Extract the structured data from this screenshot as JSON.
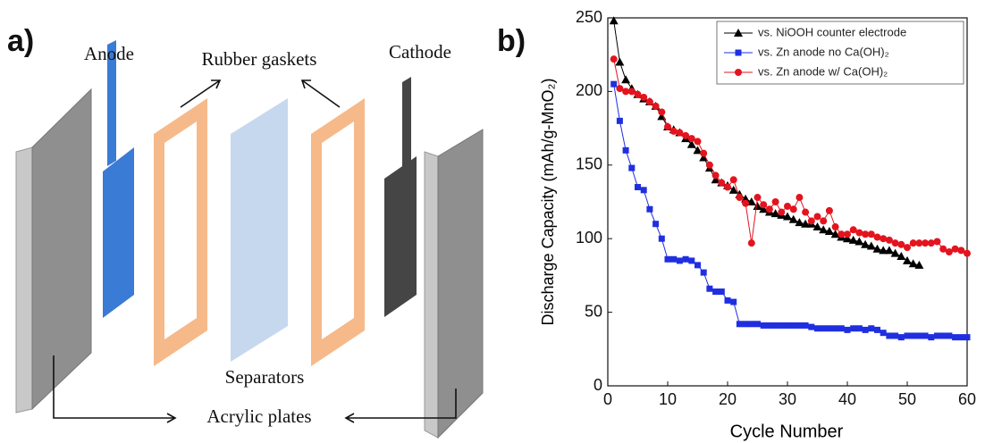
{
  "panel_a": {
    "label": "a)",
    "anode": "Anode",
    "gaskets": "Rubber gaskets",
    "cathode": "Cathode",
    "separators": "Separators",
    "plates": "Acrylic plates"
  },
  "chart_data": {
    "type": "line",
    "panel_label": "b)",
    "x_label": "Cycle Number",
    "y_label": "Discharge Capacity (mAh/g-MnO₂)",
    "xlim": [
      0,
      60
    ],
    "xticks": [
      0,
      10,
      20,
      30,
      40,
      50,
      60
    ],
    "ylim": [
      0,
      250
    ],
    "yticks": [
      0,
      50,
      100,
      150,
      200,
      250
    ],
    "legend": "upper right",
    "x": [
      1,
      2,
      3,
      4,
      5,
      6,
      7,
      8,
      9,
      10,
      11,
      12,
      13,
      14,
      15,
      16,
      17,
      18,
      19,
      20,
      21,
      22,
      23,
      24,
      25,
      26,
      27,
      28,
      29,
      30,
      31,
      32,
      33,
      34,
      35,
      36,
      37,
      38,
      39,
      40,
      41,
      42,
      43,
      44,
      45,
      46,
      47,
      48,
      49,
      50,
      51,
      52,
      53,
      54,
      55,
      56,
      57,
      58,
      59,
      60
    ],
    "series": [
      {
        "name": "vs. NiOOH counter electrode",
        "color": "#000000",
        "marker": "triangle",
        "values": [
          248,
          220,
          208,
          202,
          198,
          195,
          193,
          190,
          183,
          176,
          174,
          172,
          168,
          164,
          160,
          155,
          148,
          140,
          138,
          136,
          133,
          130,
          127,
          125,
          122,
          120,
          118,
          117,
          116,
          115,
          113,
          111,
          110,
          110,
          108,
          106,
          105,
          103,
          101,
          100,
          99,
          98,
          96,
          95,
          93,
          92,
          92,
          90,
          88,
          85,
          83,
          82,
          null,
          null,
          null,
          null,
          null,
          null,
          null,
          null
        ]
      },
      {
        "name": "vs. Zn anode no Ca(OH)₂",
        "color": "#1f2fe0",
        "marker": "square",
        "values": [
          205,
          180,
          160,
          148,
          135,
          133,
          120,
          110,
          100,
          86,
          86,
          85,
          86,
          85,
          82,
          77,
          66,
          64,
          64,
          58,
          57,
          42,
          42,
          42,
          42,
          41,
          41,
          41,
          41,
          41,
          41,
          41,
          41,
          40,
          39,
          39,
          39,
          39,
          39,
          38,
          39,
          39,
          38,
          39,
          38,
          36,
          34,
          34,
          33,
          34,
          34,
          34,
          34,
          33,
          34,
          34,
          34,
          33,
          33,
          33
        ]
      },
      {
        "name": "vs. Zn anode w/ Ca(OH)₂",
        "color": "#e3141e",
        "marker": "circle",
        "values": [
          222,
          202,
          200,
          200,
          198,
          196,
          193,
          190,
          186,
          176,
          173,
          172,
          170,
          168,
          166,
          158,
          150,
          143,
          138,
          135,
          140,
          128,
          124,
          97,
          128,
          123,
          120,
          125,
          118,
          122,
          120,
          128,
          118,
          112,
          115,
          112,
          119,
          108,
          103,
          103,
          106,
          104,
          103,
          103,
          101,
          100,
          99,
          97,
          96,
          94,
          97,
          97,
          97,
          97,
          98,
          93,
          91,
          93,
          92,
          90
        ]
      }
    ]
  }
}
